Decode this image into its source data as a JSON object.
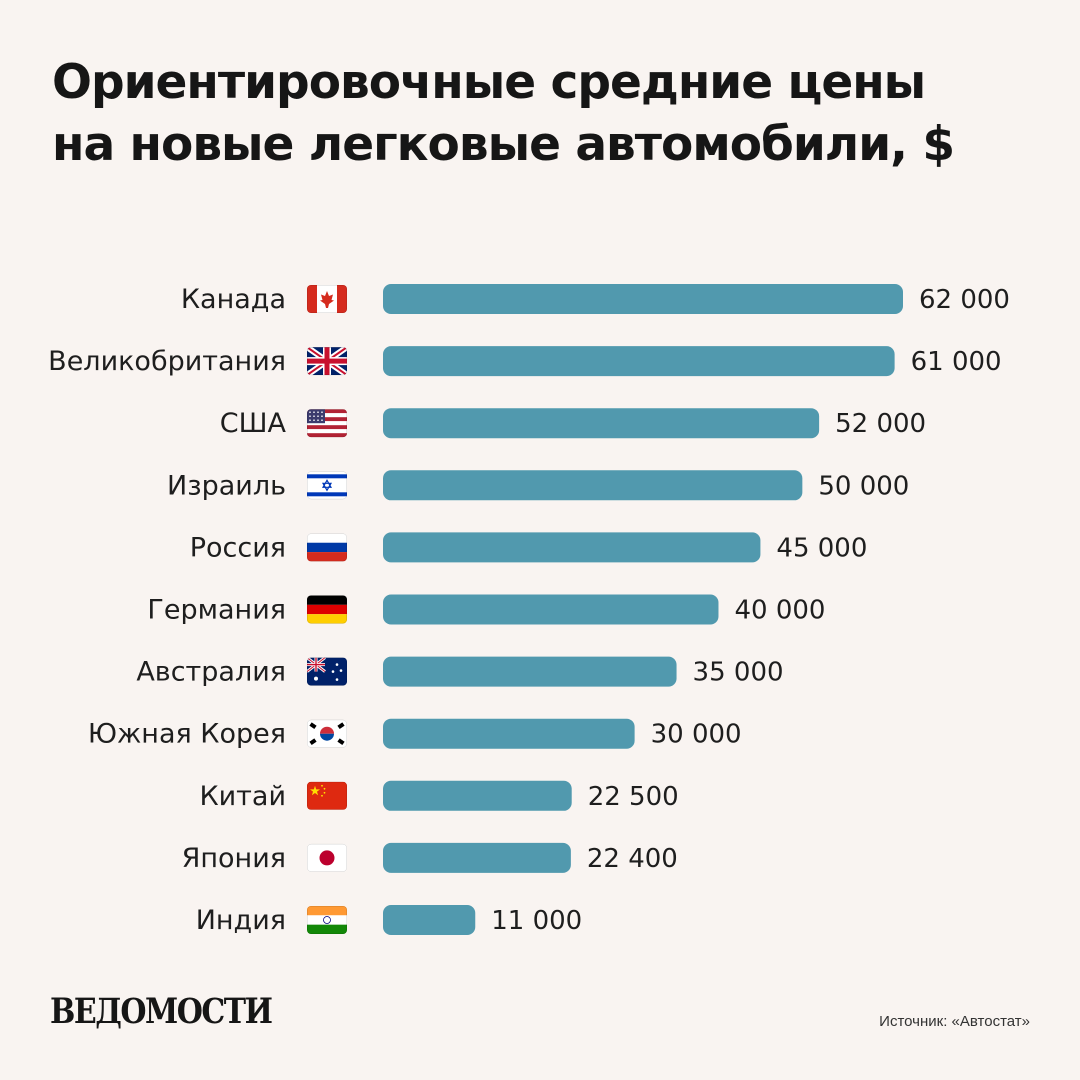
{
  "title": {
    "line1": "Ориентировочные средние цены",
    "line2": "на новые легковые автомобили, $"
  },
  "chart_data": {
    "type": "bar",
    "orientation": "horizontal",
    "categories": [
      "Канада",
      "Великобритания",
      "США",
      "Израиль",
      "Россия",
      "Германия",
      "Австралия",
      "Южная Корея",
      "Китай",
      "Япония",
      "Индия"
    ],
    "values": [
      62000,
      61000,
      52000,
      50000,
      45000,
      40000,
      35000,
      30000,
      22500,
      22400,
      11000
    ],
    "value_labels": [
      "62 000",
      "61 000",
      "52 000",
      "50 000",
      "45 000",
      "40 000",
      "35 000",
      "30 000",
      "22 500",
      "22 400",
      "11 000"
    ],
    "flags": [
      "canada-flag",
      "uk-flag",
      "usa-flag",
      "israel-flag",
      "russia-flag",
      "germany-flag",
      "australia-flag",
      "south-korea-flag",
      "china-flag",
      "japan-flag",
      "india-flag"
    ],
    "bar_color": "#5199ae",
    "grid": false,
    "legend": "none"
  },
  "footer": {
    "logo": "ВЕДОМОСТИ",
    "source": "Источник: «Автостат»"
  },
  "colors": {
    "background": "#f9f4f1",
    "bar": "#5199ae",
    "text": "#161616"
  }
}
